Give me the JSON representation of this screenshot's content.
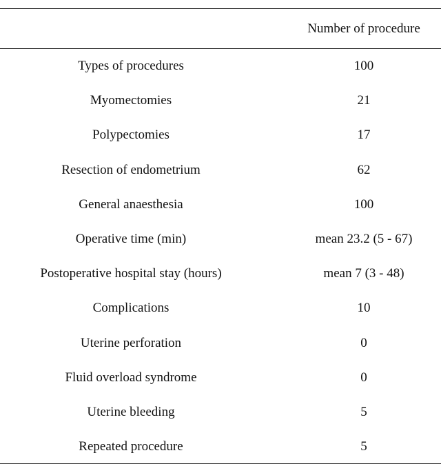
{
  "table": {
    "header": "Number of procedure",
    "rows": [
      [
        "Types of procedures",
        100
      ],
      [
        "Myomectomies",
        21
      ],
      [
        "Polypectomies",
        17
      ],
      [
        "Resection of endometrium",
        62
      ],
      [
        "General anaesthesia",
        100
      ],
      [
        "Operative time (min)",
        "mean 23.2 (5 - 67)"
      ],
      [
        "Postoperative hospital stay (hours)",
        "mean 7 (3 - 48)"
      ],
      [
        "Complications",
        10
      ],
      [
        "Uterine perforation",
        0
      ],
      [
        "Fluid overload syndrome",
        0
      ],
      [
        "Uterine bleeding",
        5
      ],
      [
        "Repeated procedure",
        5
      ]
    ]
  }
}
